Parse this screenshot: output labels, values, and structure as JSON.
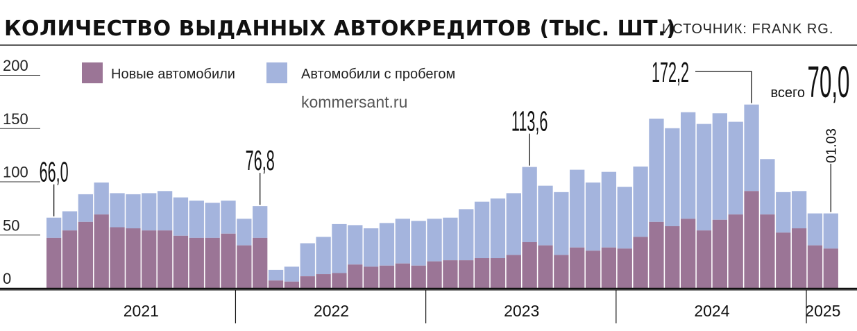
{
  "header": {
    "title": "КОЛИЧЕСТВО ВЫДАННЫХ АВТОКРЕДИТОВ (ТЫС. ШТ.)",
    "source": "ИСТОЧНИК: FRANK RG."
  },
  "watermark": "kommersant.ru",
  "colors": {
    "new": "#9b7596",
    "used": "#a4b4dd"
  },
  "chart_data": {
    "type": "bar",
    "stacked": true,
    "ylim": [
      0,
      200
    ],
    "yticks": [
      0,
      50,
      100,
      150,
      200
    ],
    "grid": true,
    "legend_position": "top-left",
    "series": [
      {
        "name": "Новые автомобили",
        "values": [
          47,
          54,
          62,
          69,
          57,
          56,
          54,
          54,
          49,
          47,
          47,
          51,
          40,
          47,
          7,
          6,
          11,
          13,
          14,
          22,
          20,
          21,
          23,
          21,
          25,
          26,
          26,
          28,
          28,
          31,
          43,
          40,
          31,
          38,
          35,
          38,
          37,
          48,
          62,
          58,
          65,
          54,
          64,
          69,
          91,
          69,
          52,
          56,
          40,
          37
        ]
      },
      {
        "name": "Автомобили с пробегом",
        "values": [
          19,
          18,
          26,
          30,
          32,
          32,
          35,
          37,
          36,
          35,
          33,
          31,
          25,
          29.8,
          10,
          14,
          31,
          35,
          46,
          37,
          36,
          40,
          42,
          42,
          40,
          40,
          48,
          53,
          56,
          58,
          70.6,
          56,
          59,
          73,
          64,
          71,
          58,
          66,
          97,
          92,
          100,
          100,
          100,
          87,
          81.2,
          52,
          38,
          35,
          30,
          33
        ]
      }
    ],
    "total_labels": [
      {
        "index": 0,
        "value": "66,0"
      },
      {
        "index": 13,
        "value": "76,8"
      },
      {
        "index": 30,
        "value": "113,6"
      },
      {
        "index": 44,
        "value": "172,2"
      }
    ],
    "years": [
      {
        "label": "2021",
        "start": 0,
        "end": 11
      },
      {
        "label": "2022",
        "start": 12,
        "end": 23
      },
      {
        "label": "2023",
        "start": 24,
        "end": 35
      },
      {
        "label": "2024",
        "start": 36,
        "end": 47
      },
      {
        "label": "2025",
        "start": 48,
        "end": 49
      }
    ],
    "current": {
      "prefix": "всего",
      "value": "70,0",
      "date": "01.03"
    }
  }
}
